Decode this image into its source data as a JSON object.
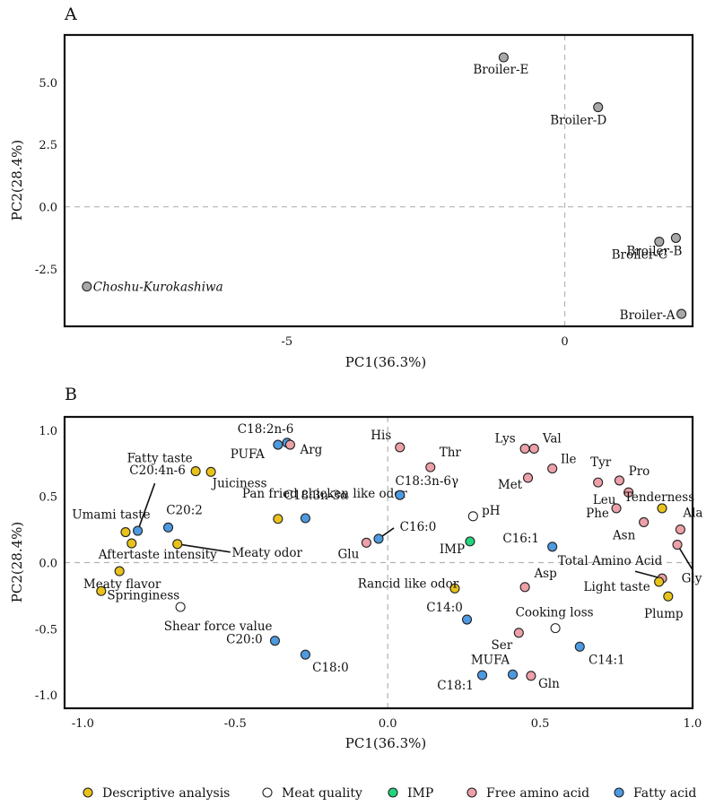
{
  "chart_data": [
    {
      "panel": "A",
      "type": "scatter",
      "xlabel": "PC1(36.3%)",
      "ylabel": "PC2(28.4%)",
      "xlim": [
        -9.0,
        2.3
      ],
      "ylim": [
        -4.8,
        6.9
      ],
      "xticks": [
        -5,
        0
      ],
      "yticks": [
        5.0,
        2.5,
        0.0,
        -2.5
      ],
      "ytick_labels": [
        "5.0",
        "2.5",
        "0.0",
        "-2.5"
      ],
      "point_color": "#a8a8a8",
      "points": [
        {
          "label": "Broiler-E",
          "x": -1.1,
          "y": 6.0
        },
        {
          "label": "Broiler-D",
          "x": 0.6,
          "y": 4.0
        },
        {
          "label": "Broiler-C",
          "x": 1.7,
          "y": -1.4
        },
        {
          "label": "Broiler-B",
          "x": 2.0,
          "y": -1.25
        },
        {
          "label": "Broiler-A",
          "x": 2.1,
          "y": -4.3
        },
        {
          "label": "Choshu-Kurokashiwa",
          "x": -8.6,
          "y": -3.2,
          "italic": true
        }
      ]
    },
    {
      "panel": "B",
      "type": "scatter",
      "xlabel": "PC1(36.3%)",
      "ylabel": "PC2(28.4%)",
      "xlim": [
        -1.06,
        1.0
      ],
      "ylim": [
        -1.1,
        1.1
      ],
      "xticks": [
        -1.0,
        -0.5,
        0.0,
        0.5,
        1.0
      ],
      "xtick_labels": [
        "-1.0",
        "-0.5",
        "0.0",
        "0.5",
        "1.0"
      ],
      "yticks": [
        1.0,
        0.5,
        0.0,
        -0.5,
        -1.0
      ],
      "ytick_labels": [
        "1.0",
        "0.5",
        "0.0",
        "-0.5",
        "-1.0"
      ],
      "categories": [
        {
          "key": "descriptive",
          "name": "Descriptive analysis",
          "color": "#e8c21a"
        },
        {
          "key": "meat",
          "name": "Meat quality",
          "color": "#ffffff"
        },
        {
          "key": "imp",
          "name": "IMP",
          "color": "#1fd67d"
        },
        {
          "key": "amino",
          "name": "Free amino acid",
          "color": "#eda0a8"
        },
        {
          "key": "fatty",
          "name": "Fatty acid",
          "color": "#4d9ae0"
        }
      ],
      "points": [
        {
          "label": "C18:2n-6",
          "x": -0.33,
          "y": 0.905,
          "cat": "fatty"
        },
        {
          "label": "PUFA",
          "x": -0.36,
          "y": 0.89,
          "cat": "fatty"
        },
        {
          "label": "Arg",
          "x": -0.32,
          "y": 0.89,
          "cat": "amino"
        },
        {
          "label": "Fatty taste",
          "x": -0.63,
          "y": 0.69,
          "cat": "descriptive"
        },
        {
          "label": "Juiciness",
          "x": -0.58,
          "y": 0.685,
          "cat": "descriptive"
        },
        {
          "label": "C20:4n-6",
          "x": -0.82,
          "y": 0.24,
          "cat": "fatty"
        },
        {
          "label": "C20:2",
          "x": -0.72,
          "y": 0.265,
          "cat": "fatty"
        },
        {
          "label": "Umami taste",
          "x": -0.86,
          "y": 0.23,
          "cat": "descriptive"
        },
        {
          "label": "Aftertaste intensity",
          "x": -0.84,
          "y": 0.145,
          "cat": "descriptive"
        },
        {
          "label": "Meaty odor",
          "x": -0.69,
          "y": 0.14,
          "cat": "descriptive"
        },
        {
          "label": "Pan fried chicken like odor",
          "x": -0.36,
          "y": 0.33,
          "cat": "descriptive"
        },
        {
          "label": "C18:3n-3α",
          "x": -0.27,
          "y": 0.335,
          "cat": "fatty"
        },
        {
          "label": "Glu",
          "x": -0.07,
          "y": 0.15,
          "cat": "amino"
        },
        {
          "label": "C16:0",
          "x": -0.03,
          "y": 0.18,
          "cat": "fatty"
        },
        {
          "label": "Meaty flavor",
          "x": -0.88,
          "y": -0.065,
          "cat": "descriptive"
        },
        {
          "label": "Springiness",
          "x": -0.94,
          "y": -0.215,
          "cat": "descriptive"
        },
        {
          "label": "Shear force value",
          "x": -0.68,
          "y": -0.335,
          "cat": "meat"
        },
        {
          "label": "C20:0",
          "x": -0.37,
          "y": -0.59,
          "cat": "fatty"
        },
        {
          "label": "C18:0",
          "x": -0.27,
          "y": -0.695,
          "cat": "fatty"
        },
        {
          "label": "His",
          "x": 0.04,
          "y": 0.87,
          "cat": "amino"
        },
        {
          "label": "Thr",
          "x": 0.14,
          "y": 0.72,
          "cat": "amino"
        },
        {
          "label": "C18:3n-6γ",
          "x": 0.04,
          "y": 0.51,
          "cat": "fatty"
        },
        {
          "label": "pH",
          "x": 0.28,
          "y": 0.35,
          "cat": "meat"
        },
        {
          "label": "IMP",
          "x": 0.27,
          "y": 0.16,
          "cat": "imp"
        },
        {
          "label": "Rancid like odor",
          "x": 0.22,
          "y": -0.195,
          "cat": "descriptive"
        },
        {
          "label": "C14:0",
          "x": 0.26,
          "y": -0.43,
          "cat": "fatty"
        },
        {
          "label": "Lys",
          "x": 0.45,
          "y": 0.86,
          "cat": "amino"
        },
        {
          "label": "Val",
          "x": 0.48,
          "y": 0.86,
          "cat": "amino"
        },
        {
          "label": "Ile",
          "x": 0.54,
          "y": 0.71,
          "cat": "amino"
        },
        {
          "label": "Met",
          "x": 0.46,
          "y": 0.64,
          "cat": "amino"
        },
        {
          "label": "C16:1",
          "x": 0.54,
          "y": 0.12,
          "cat": "fatty"
        },
        {
          "label": "Asp",
          "x": 0.45,
          "y": -0.185,
          "cat": "amino"
        },
        {
          "label": "Cooking loss",
          "x": 0.55,
          "y": -0.495,
          "cat": "meat"
        },
        {
          "label": "Ser",
          "x": 0.43,
          "y": -0.53,
          "cat": "amino"
        },
        {
          "label": "MUFA",
          "x": 0.41,
          "y": -0.845,
          "cat": "fatty"
        },
        {
          "label": "C18:1",
          "x": 0.31,
          "y": -0.85,
          "cat": "fatty"
        },
        {
          "label": "Gln",
          "x": 0.47,
          "y": -0.855,
          "cat": "amino"
        },
        {
          "label": "C14:1",
          "x": 0.63,
          "y": -0.635,
          "cat": "fatty"
        },
        {
          "label": "Tyr",
          "x": 0.69,
          "y": 0.605,
          "cat": "amino"
        },
        {
          "label": "Pro",
          "x": 0.76,
          "y": 0.62,
          "cat": "amino"
        },
        {
          "label": "Leu",
          "x": 0.79,
          "y": 0.53,
          "cat": "amino"
        },
        {
          "label": "Phe",
          "x": 0.75,
          "y": 0.41,
          "cat": "amino"
        },
        {
          "label": "Tenderness",
          "x": 0.9,
          "y": 0.41,
          "cat": "descriptive"
        },
        {
          "label": "Ala",
          "x": 0.96,
          "y": 0.25,
          "cat": "amino"
        },
        {
          "label": "Asn",
          "x": 0.84,
          "y": 0.305,
          "cat": "amino"
        },
        {
          "label": "Gly",
          "x": 0.95,
          "y": 0.135,
          "cat": "amino"
        },
        {
          "label": "Total Amino Acid",
          "x": 0.9,
          "y": -0.12,
          "cat": "amino"
        },
        {
          "label": "Light taste",
          "x": 0.89,
          "y": -0.145,
          "cat": "descriptive"
        },
        {
          "label": "Plump",
          "x": 0.92,
          "y": -0.255,
          "cat": "descriptive"
        }
      ]
    }
  ]
}
